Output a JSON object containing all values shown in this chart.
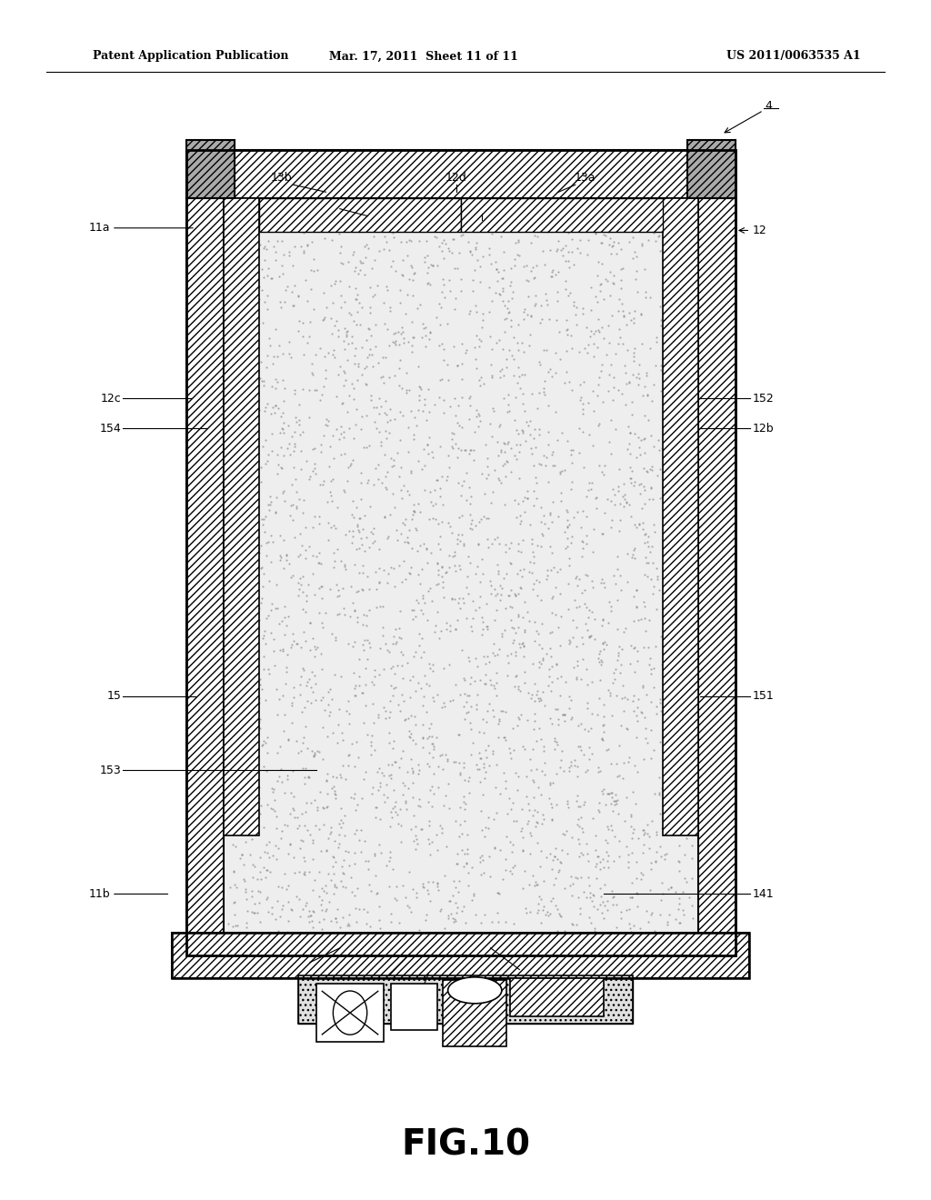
{
  "header_left": "Patent Application Publication",
  "header_mid": "Mar. 17, 2011  Sheet 11 of 11",
  "header_right": "US 2011/0063535 A1",
  "figure_label": "FIG.10",
  "bg_color": "#ffffff",
  "line_color": "#000000"
}
